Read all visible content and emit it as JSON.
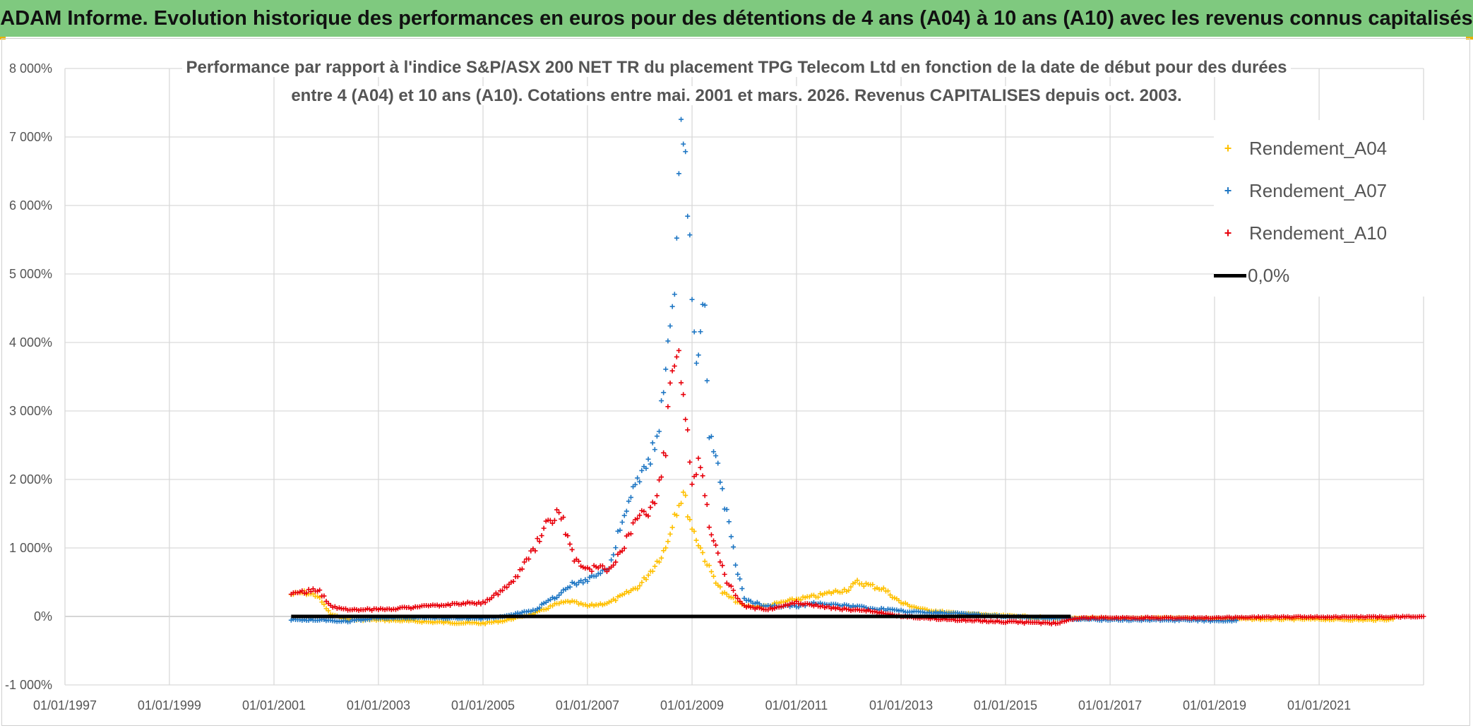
{
  "banner": {
    "title": "ADAM Informe. Evolution historique des performances en euros pour des détentions de 4 ans (A04) à 10 ans (A10) avec les revenus connus capitalisés"
  },
  "chart_data": {
    "type": "scatter",
    "title_line1": "Performance par rapport à l'indice S&P/ASX 200 NET TR  du placement TPG Telecom Ltd en fonction de la date de début pour des durées",
    "title_line2": "entre 4 (A04) et 10 ans (A10). Cotations entre mai. 2001 et mars. 2026. Revenus CAPITALISES depuis oct. 2003.",
    "xlim": [
      "1997-01-01",
      "2023-01-01"
    ],
    "ylim": [
      -1000,
      8000
    ],
    "y_unit": "%",
    "grid": true,
    "legend_placement": "top-right",
    "x_ticks": [
      "01/01/1997",
      "01/01/1999",
      "01/01/2001",
      "01/01/2003",
      "01/01/2005",
      "01/01/2007",
      "01/01/2009",
      "01/01/2011",
      "01/01/2013",
      "01/01/2015",
      "01/01/2017",
      "01/01/2019",
      "01/01/2021"
    ],
    "y_ticks": [
      "-1 000%",
      "0%",
      "1 000%",
      "2 000%",
      "3 000%",
      "4 000%",
      "5 000%",
      "6 000%",
      "7 000%",
      "8 000%"
    ],
    "series": [
      {
        "name": "Rendement_A04",
        "color": "#ffc000",
        "marker": "+",
        "points": [
          [
            "2001-05-01",
            320
          ],
          [
            "2001-08-01",
            350
          ],
          [
            "2001-11-01",
            300
          ],
          [
            "2002-02-01",
            30
          ],
          [
            "2002-06-01",
            -50
          ],
          [
            "2003-01-01",
            -50
          ],
          [
            "2003-06-01",
            -60
          ],
          [
            "2004-01-01",
            -80
          ],
          [
            "2004-06-01",
            -90
          ],
          [
            "2005-01-01",
            -100
          ],
          [
            "2005-06-01",
            -60
          ],
          [
            "2006-01-01",
            50
          ],
          [
            "2006-06-01",
            180
          ],
          [
            "2006-09-01",
            220
          ],
          [
            "2007-01-01",
            150
          ],
          [
            "2007-06-01",
            200
          ],
          [
            "2007-09-01",
            300
          ],
          [
            "2008-01-01",
            450
          ],
          [
            "2008-04-01",
            700
          ],
          [
            "2008-07-01",
            1000
          ],
          [
            "2008-09-01",
            1500
          ],
          [
            "2008-11-01",
            1800
          ],
          [
            "2009-01-01",
            1300
          ],
          [
            "2009-03-01",
            1000
          ],
          [
            "2009-05-01",
            700
          ],
          [
            "2009-08-01",
            350
          ],
          [
            "2010-01-01",
            150
          ],
          [
            "2010-06-01",
            150
          ],
          [
            "2011-01-01",
            250
          ],
          [
            "2011-06-01",
            300
          ],
          [
            "2011-09-01",
            350
          ],
          [
            "2012-01-01",
            400
          ],
          [
            "2012-03-01",
            500
          ],
          [
            "2012-06-01",
            450
          ],
          [
            "2012-09-01",
            400
          ],
          [
            "2013-01-01",
            200
          ],
          [
            "2013-06-01",
            100
          ],
          [
            "2014-01-01",
            50
          ],
          [
            "2014-06-01",
            30
          ],
          [
            "2015-01-01",
            10
          ],
          [
            "2015-06-01",
            0
          ],
          [
            "2016-01-01",
            -30
          ],
          [
            "2017-01-01",
            -30
          ],
          [
            "2018-01-01",
            -20
          ],
          [
            "2019-01-01",
            -30
          ],
          [
            "2020-01-01",
            -40
          ],
          [
            "2021-01-01",
            -40
          ],
          [
            "2022-01-01",
            -50
          ],
          [
            "2022-06-01",
            -40
          ]
        ]
      },
      {
        "name": "Rendement_A07",
        "color": "#1f77c4",
        "marker": "+",
        "points": [
          [
            "2001-05-01",
            -50
          ],
          [
            "2001-11-01",
            -50
          ],
          [
            "2002-06-01",
            -70
          ],
          [
            "2003-01-01",
            -20
          ],
          [
            "2004-01-01",
            -20
          ],
          [
            "2005-01-01",
            -30
          ],
          [
            "2005-06-01",
            0
          ],
          [
            "2006-01-01",
            100
          ],
          [
            "2006-06-01",
            300
          ],
          [
            "2006-09-01",
            450
          ],
          [
            "2007-01-01",
            550
          ],
          [
            "2007-06-01",
            700
          ],
          [
            "2007-09-01",
            1400
          ],
          [
            "2007-12-01",
            1900
          ],
          [
            "2008-03-01",
            2200
          ],
          [
            "2008-05-01",
            2600
          ],
          [
            "2008-07-01",
            3500
          ],
          [
            "2008-09-01",
            5000
          ],
          [
            "2008-10-01",
            6500
          ],
          [
            "2008-11-01",
            7200
          ],
          [
            "2008-12-01",
            6000
          ],
          [
            "2009-01-01",
            4500
          ],
          [
            "2009-02-01",
            3800
          ],
          [
            "2009-03-01",
            4300
          ],
          [
            "2009-04-01",
            4700
          ],
          [
            "2009-05-01",
            2600
          ],
          [
            "2009-07-01",
            2200
          ],
          [
            "2009-09-01",
            1500
          ],
          [
            "2009-11-01",
            800
          ],
          [
            "2010-01-01",
            250
          ],
          [
            "2010-06-01",
            150
          ],
          [
            "2011-01-01",
            150
          ],
          [
            "2011-06-01",
            200
          ],
          [
            "2012-01-01",
            150
          ],
          [
            "2012-06-01",
            120
          ],
          [
            "2013-01-01",
            80
          ],
          [
            "2013-06-01",
            60
          ],
          [
            "2014-01-01",
            50
          ],
          [
            "2015-01-01",
            0
          ],
          [
            "2016-01-01",
            -30
          ],
          [
            "2017-01-01",
            -50
          ],
          [
            "2018-01-01",
            -50
          ],
          [
            "2019-01-01",
            -60
          ],
          [
            "2019-06-01",
            -60
          ]
        ]
      },
      {
        "name": "Rendement_A10",
        "color": "#e8000b",
        "marker": "+",
        "points": [
          [
            "2001-05-01",
            350
          ],
          [
            "2001-08-01",
            350
          ],
          [
            "2001-11-01",
            400
          ],
          [
            "2002-02-01",
            150
          ],
          [
            "2002-06-01",
            100
          ],
          [
            "2003-01-01",
            100
          ],
          [
            "2003-06-01",
            120
          ],
          [
            "2004-01-01",
            150
          ],
          [
            "2004-06-01",
            180
          ],
          [
            "2005-01-01",
            200
          ],
          [
            "2005-06-01",
            400
          ],
          [
            "2005-09-01",
            600
          ],
          [
            "2006-01-01",
            1000
          ],
          [
            "2006-04-01",
            1400
          ],
          [
            "2006-07-01",
            1500
          ],
          [
            "2006-10-01",
            800
          ],
          [
            "2007-01-01",
            700
          ],
          [
            "2007-06-01",
            700
          ],
          [
            "2007-09-01",
            1000
          ],
          [
            "2007-12-01",
            1400
          ],
          [
            "2008-03-01",
            1500
          ],
          [
            "2008-05-01",
            1800
          ],
          [
            "2008-07-01",
            2500
          ],
          [
            "2008-08-01",
            3500
          ],
          [
            "2008-10-01",
            3800
          ],
          [
            "2008-11-01",
            3300
          ],
          [
            "2008-12-01",
            2800
          ],
          [
            "2009-01-01",
            2000
          ],
          [
            "2009-03-01",
            2300
          ],
          [
            "2009-05-01",
            1300
          ],
          [
            "2009-07-01",
            900
          ],
          [
            "2009-09-01",
            500
          ],
          [
            "2010-01-01",
            150
          ],
          [
            "2010-06-01",
            100
          ],
          [
            "2011-01-01",
            200
          ],
          [
            "2011-06-01",
            150
          ],
          [
            "2012-01-01",
            100
          ],
          [
            "2012-06-01",
            80
          ],
          [
            "2013-01-01",
            0
          ],
          [
            "2014-01-01",
            -50
          ],
          [
            "2015-01-01",
            -80
          ],
          [
            "2016-01-01",
            -100
          ],
          [
            "2016-06-01",
            -20
          ],
          [
            "2017-01-01",
            -20
          ],
          [
            "2018-01-01",
            -20
          ],
          [
            "2019-01-01",
            -20
          ],
          [
            "2020-01-01",
            -10
          ],
          [
            "2021-01-01",
            -10
          ],
          [
            "2022-01-01",
            -10
          ],
          [
            "2023-01-01",
            0
          ]
        ]
      },
      {
        "name": "0,0%",
        "color": "#000000",
        "marker": "line",
        "points": [
          [
            "2001-05-01",
            0
          ],
          [
            "2016-04-01",
            0
          ]
        ]
      }
    ]
  }
}
